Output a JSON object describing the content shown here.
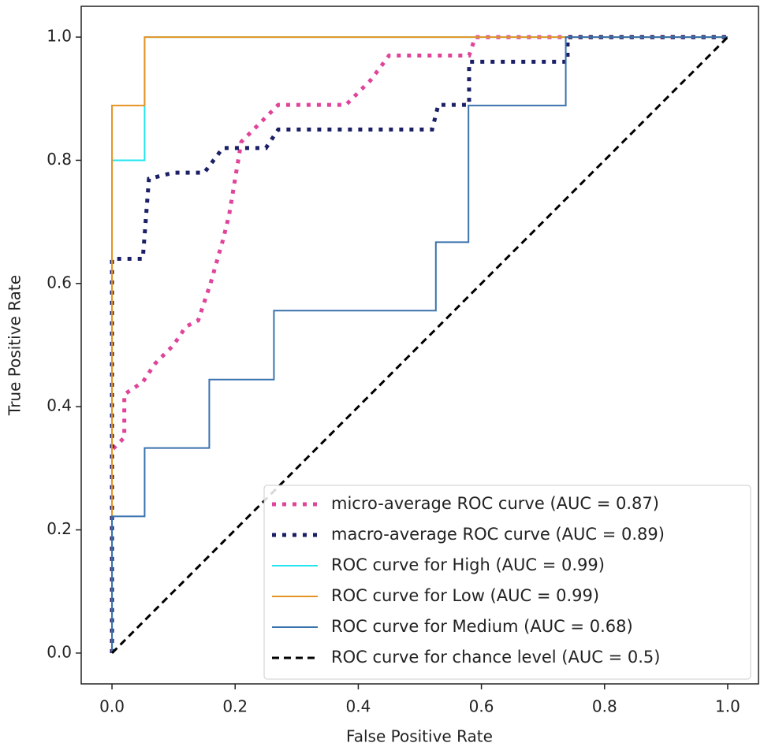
{
  "chart_data": {
    "type": "line",
    "xlabel": "False Positive Rate",
    "ylabel": "True Positive Rate",
    "xlim": [
      -0.05,
      1.05
    ],
    "ylim": [
      -0.05,
      1.05
    ],
    "xticks": [
      {
        "value": 0,
        "label": "0.0"
      },
      0.2,
      0.4,
      0.6,
      0.8,
      {
        "value": 1,
        "label": "1.0"
      }
    ],
    "yticks": [
      {
        "value": 0,
        "label": "0.0"
      },
      0.2,
      0.4,
      0.6,
      0.8,
      {
        "value": 1,
        "label": "1.0"
      }
    ],
    "grid": false,
    "legend": "lower right",
    "series": [
      {
        "name": "micro-average ROC curve (AUC = 0.87)",
        "color": "#e0449a",
        "linestyle": "dotted",
        "linewidth": 5,
        "x": [
          0,
          0,
          0.02,
          0.02,
          0.05,
          0.07,
          0.1,
          0.12,
          0.14,
          0.16,
          0.18,
          0.19,
          0.2,
          0.21,
          0.24,
          0.27,
          0.38,
          0.42,
          0.45,
          0.58,
          0.59,
          1
        ],
        "values": [
          0,
          0.33,
          0.35,
          0.42,
          0.44,
          0.47,
          0.5,
          0.53,
          0.54,
          0.6,
          0.67,
          0.71,
          0.77,
          0.83,
          0.86,
          0.89,
          0.89,
          0.93,
          0.97,
          0.97,
          1,
          1
        ]
      },
      {
        "name": "macro-average ROC curve (AUC = 0.89)",
        "color": "#1a1f66",
        "linestyle": "dotted",
        "linewidth": 5,
        "x": [
          0,
          0,
          0.05,
          0.06,
          0.1,
          0.15,
          0.18,
          0.25,
          0.27,
          0.52,
          0.53,
          0.58,
          0.58,
          0.74,
          0.74,
          1
        ],
        "values": [
          0,
          0.64,
          0.64,
          0.77,
          0.78,
          0.78,
          0.82,
          0.82,
          0.85,
          0.85,
          0.89,
          0.89,
          0.96,
          0.96,
          1,
          1
        ]
      },
      {
        "name": "ROC curve for High (AUC = 0.99)",
        "color": "#22e5ee",
        "linestyle": "solid",
        "linewidth": 2,
        "x": [
          0,
          0,
          0.053,
          0.053,
          1
        ],
        "values": [
          0,
          0.8,
          0.8,
          1,
          1
        ]
      },
      {
        "name": "ROC curve for Low (AUC = 0.99)",
        "color": "#e59424",
        "linestyle": "solid",
        "linewidth": 2,
        "x": [
          0,
          0,
          0.053,
          0.053,
          1
        ],
        "values": [
          0,
          0.889,
          0.889,
          1,
          1
        ]
      },
      {
        "name": "ROC curve for Medium (AUC = 0.68)",
        "color": "#3a72ad",
        "linestyle": "solid",
        "linewidth": 2,
        "x": [
          0,
          0,
          0.053,
          0.053,
          0.158,
          0.158,
          0.263,
          0.263,
          0.526,
          0.526,
          0.579,
          0.579,
          0.737,
          0.737,
          1
        ],
        "values": [
          0,
          0.222,
          0.222,
          0.333,
          0.333,
          0.444,
          0.444,
          0.556,
          0.556,
          0.667,
          0.667,
          0.889,
          0.889,
          1,
          1
        ]
      },
      {
        "name": "ROC curve for chance level (AUC = 0.5)",
        "color": "#000000",
        "linestyle": "dashed",
        "linewidth": 3,
        "x": [
          0,
          1
        ],
        "values": [
          0,
          1
        ]
      }
    ]
  }
}
